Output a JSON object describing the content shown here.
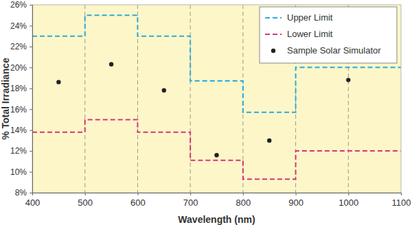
{
  "chart_data": {
    "type": "line",
    "x_label": "Wavelength (nm)",
    "y_label": "% Total Irradiance",
    "xlim": [
      400,
      1100
    ],
    "xticks": [
      400,
      500,
      600,
      700,
      800,
      900,
      1000,
      1100
    ],
    "ylim": [
      8,
      26
    ],
    "yticks": [
      {
        "value": 8,
        "label": "8%"
      },
      {
        "value": 10,
        "label": "10%"
      },
      {
        "value": 12,
        "label": "12%"
      },
      {
        "value": 14,
        "label": "14%"
      },
      {
        "value": 16,
        "label": "16%"
      },
      {
        "value": 18,
        "label": "18%"
      },
      {
        "value": 20,
        "label": "20%"
      },
      {
        "value": 22,
        "label": "22%"
      },
      {
        "value": 24,
        "label": "24%"
      },
      {
        "value": 26,
        "label": "26%"
      }
    ],
    "grid": true,
    "legend": "upper right",
    "series": [
      {
        "name": "Upper Limit",
        "type": "step",
        "color": "#29aae1",
        "line_style": "dashed",
        "x": [
          400,
          500,
          600,
          700,
          800,
          900,
          1100
        ],
        "values": [
          23,
          25,
          23,
          18.7,
          15.7,
          20,
          20
        ]
      },
      {
        "name": "Lower Limit",
        "type": "step",
        "color": "#d6337a",
        "line_style": "dashed",
        "x": [
          400,
          500,
          600,
          700,
          800,
          900,
          1100
        ],
        "values": [
          13.8,
          15,
          13.8,
          11.1,
          9.3,
          12,
          12
        ]
      },
      {
        "name": "Sample Solar Simulator",
        "type": "scatter",
        "color": "#222222",
        "marker": "circle",
        "x": [
          450,
          550,
          650,
          750,
          850,
          1000
        ],
        "values": [
          18.6,
          20.3,
          17.8,
          11.6,
          13,
          18.8
        ]
      }
    ]
  }
}
